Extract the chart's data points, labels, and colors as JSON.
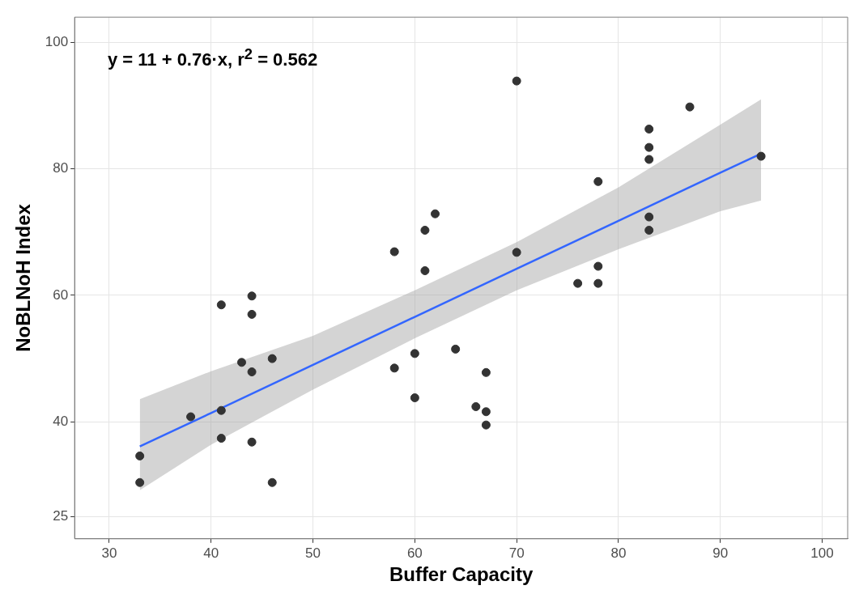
{
  "chart_data": {
    "type": "scatter",
    "xlabel": "Buffer Capacity",
    "ylabel": "NoBLNoH Index",
    "annotations": [
      "y = 11 + 0.76·x,  r$^{2}$ = 0.562"
    ],
    "xlim": [
      26.6,
      102.5
    ],
    "xticks": [
      30,
      40,
      50,
      60,
      70,
      80,
      90,
      100
    ],
    "ylim": [
      21.5,
      104
    ],
    "yticks": [
      25,
      40,
      60,
      80,
      100
    ],
    "grid": true,
    "legend": false,
    "marker": "circle",
    "series": [
      {
        "type": "scatter",
        "color": "#333333",
        "x": [
          33,
          33,
          38,
          41,
          41,
          41,
          43,
          44,
          44,
          44,
          44,
          46,
          46,
          58,
          58,
          60,
          60,
          61,
          61,
          62,
          64,
          66,
          67,
          67,
          67,
          70,
          70,
          76,
          78,
          78,
          78,
          83,
          83,
          83,
          83,
          83,
          87,
          94
        ],
        "values": [
          34.6,
          30.4,
          40.8,
          58.5,
          41.8,
          37.4,
          49.4,
          59.9,
          57,
          47.9,
          36.8,
          50,
          30.4,
          66.9,
          48.5,
          50.8,
          43.8,
          70.3,
          63.9,
          72.9,
          51.5,
          42.4,
          47.8,
          41.6,
          39.5,
          93.9,
          66.8,
          61.9,
          78,
          64.6,
          61.9,
          86.3,
          83.4,
          81.5,
          72.4,
          70.3,
          89.8,
          82
        ]
      },
      {
        "type": "line",
        "color": "#3366ff",
        "marker": "none",
        "x": [
          33,
          40,
          50,
          60,
          70,
          80,
          90,
          94
        ],
        "values": [
          36.1,
          41.4,
          49,
          56.6,
          64.2,
          71.8,
          79.4,
          82.4
        ],
        "lower": [
          29.2,
          36.4,
          45.1,
          53.2,
          60.8,
          67.3,
          73.3,
          75
        ],
        "upper": [
          43.6,
          48,
          53.6,
          60.8,
          68.4,
          77.1,
          87,
          91
        ]
      }
    ]
  }
}
